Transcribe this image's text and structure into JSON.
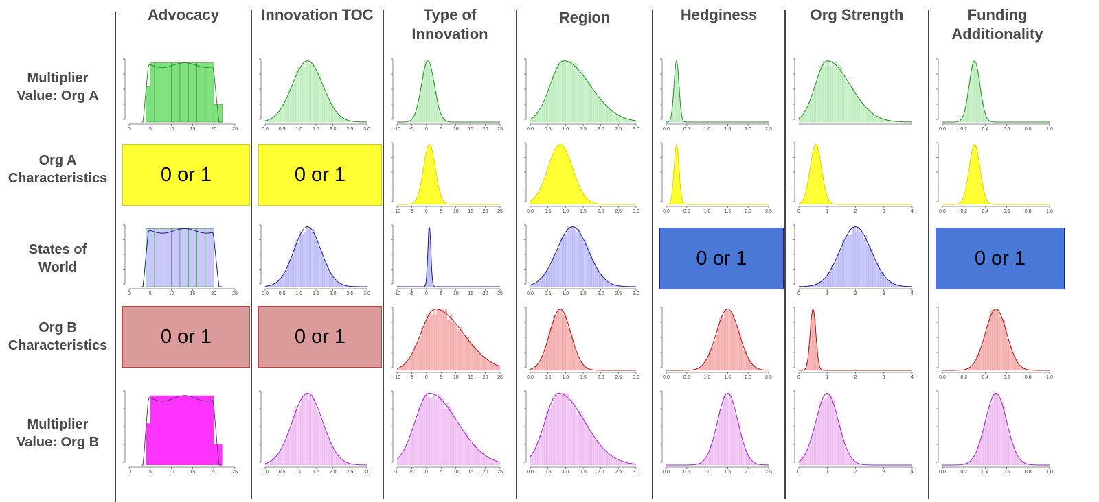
{
  "columns": [
    "Advocacy",
    "Innovation TOC",
    "Type of\nInnovation",
    "Region",
    "Hedginess",
    "Org Strength",
    "Funding\nAdditionality"
  ],
  "rows": [
    "Multiplier\nValue: Org A",
    "Org A\nCharacteristics",
    "States of\nWorld",
    "Org B\nCharacteristics",
    "Multiplier\nValue: Org B"
  ],
  "box_label": "0 or 1",
  "colors": {
    "green": "#33cc33",
    "yellow": "#ffff33",
    "blue": "#0000ee",
    "blue_box": "#4a78d6",
    "red": "#ee2222",
    "pink_box": "#dc9b9b",
    "magenta": "#ff33ff",
    "violet": "#bb33dd"
  },
  "chart_data": [
    {
      "type": "histogram",
      "row": 0,
      "col": 0,
      "color": "green",
      "shape": "uniform-bars",
      "xticks": [
        "0",
        "5",
        "10",
        "15",
        "20",
        "25"
      ],
      "xlim": [
        0,
        25
      ],
      "bars": [
        {
          "x0": 4,
          "x1": 5,
          "h": 0.6
        },
        {
          "x0": 5,
          "x1": 20,
          "h": 1.0
        },
        {
          "x0": 20,
          "x1": 22,
          "h": 0.3
        }
      ]
    },
    {
      "type": "histogram",
      "row": 0,
      "col": 1,
      "color": "green",
      "shape": "normal",
      "mean": 1.25,
      "sd": 0.45,
      "xticks": [
        "0.0",
        "0.5",
        "1.0",
        "1.5",
        "2.0",
        "2.5",
        "3.0"
      ],
      "xlim": [
        0,
        3
      ]
    },
    {
      "type": "histogram",
      "row": 0,
      "col": 2,
      "color": "green",
      "shape": "normal",
      "mean": 0.5,
      "sd": 2.2,
      "xticks": [
        "-10",
        "-5",
        "0",
        "5",
        "10",
        "15",
        "20",
        "25"
      ],
      "xlim": [
        -10,
        25
      ]
    },
    {
      "type": "histogram",
      "row": 0,
      "col": 3,
      "color": "green",
      "shape": "skewed",
      "mean": 0.95,
      "sd": 0.55,
      "xticks": [
        "0.0",
        "0.5",
        "1.0",
        "1.5",
        "2.0",
        "2.5",
        "3.0"
      ],
      "xlim": [
        0,
        3
      ]
    },
    {
      "type": "histogram",
      "row": 0,
      "col": 4,
      "color": "green",
      "shape": "normal",
      "mean": 0.25,
      "sd": 0.06,
      "xticks": [
        "0.0",
        "0.5",
        "1.0",
        "1.5",
        "2.0",
        "2.5"
      ],
      "xlim": [
        0,
        2.5
      ]
    },
    {
      "type": "histogram",
      "row": 0,
      "col": 5,
      "color": "green",
      "shape": "skewed",
      "mean": 1.0,
      "sd": 0.6,
      "xticks": [],
      "xlim": [
        0,
        4
      ]
    },
    {
      "type": "histogram",
      "row": 0,
      "col": 6,
      "color": "green",
      "shape": "normal",
      "mean": 0.3,
      "sd": 0.05,
      "xticks": [
        "0.0",
        "0.2",
        "0.4",
        "0.6",
        "0.8",
        "1.0"
      ],
      "xlim": [
        0,
        1
      ]
    },
    {
      "type": "box",
      "row": 1,
      "col": 0,
      "color": "yellow"
    },
    {
      "type": "box",
      "row": 1,
      "col": 1,
      "color": "yellow"
    },
    {
      "type": "histogram",
      "row": 1,
      "col": 2,
      "color": "yellow",
      "shape": "normal",
      "mean": 1,
      "sd": 2.0,
      "xticks": [
        "-10",
        "-5",
        "0",
        "5",
        "10",
        "15",
        "20",
        "25"
      ],
      "xlim": [
        -10,
        25
      ]
    },
    {
      "type": "histogram",
      "row": 1,
      "col": 3,
      "color": "yellow",
      "shape": "normal",
      "mean": 0.85,
      "sd": 0.35,
      "xticks": [
        "0.0",
        "0.5",
        "1.0",
        "1.5",
        "2.0",
        "2.5",
        "3.0"
      ],
      "xlim": [
        0,
        3
      ]
    },
    {
      "type": "histogram",
      "row": 1,
      "col": 4,
      "color": "yellow",
      "shape": "normal",
      "mean": 0.25,
      "sd": 0.06,
      "xticks": [
        "0.0",
        "0.5",
        "1.0",
        "1.5",
        "2.0",
        "2.5"
      ],
      "xlim": [
        0,
        2.5
      ]
    },
    {
      "type": "histogram",
      "row": 1,
      "col": 5,
      "color": "yellow",
      "shape": "normal",
      "mean": 0.6,
      "sd": 0.2,
      "xticks": [
        "0",
        "1",
        "2",
        "3",
        "4"
      ],
      "xlim": [
        0,
        4
      ]
    },
    {
      "type": "histogram",
      "row": 1,
      "col": 6,
      "color": "yellow",
      "shape": "normal",
      "mean": 0.3,
      "sd": 0.05,
      "xticks": [
        "0.0",
        "0.2",
        "0.4",
        "0.6",
        "0.8",
        "1.0"
      ],
      "xlim": [
        0,
        1
      ]
    },
    {
      "type": "histogram",
      "row": 2,
      "col": 0,
      "color": "blue",
      "shape": "uniform-bars",
      "xticks": [
        "0",
        "5",
        "10",
        "15",
        "20",
        "25"
      ],
      "xlim": [
        0,
        25
      ],
      "bars": [
        {
          "x0": 4,
          "x1": 20,
          "h": 1.0
        }
      ]
    },
    {
      "type": "histogram",
      "row": 2,
      "col": 1,
      "color": "blue",
      "shape": "normal",
      "mean": 1.25,
      "sd": 0.4,
      "xticks": [
        "0.0",
        "0.5",
        "1.0",
        "1.5",
        "2.0",
        "2.5",
        "3.0"
      ],
      "xlim": [
        0,
        3
      ]
    },
    {
      "type": "histogram",
      "row": 2,
      "col": 2,
      "color": "blue",
      "shape": "normal",
      "mean": 1,
      "sd": 0.5,
      "xticks": [
        "-10",
        "-5",
        "0",
        "5",
        "10",
        "15",
        "20",
        "25"
      ],
      "xlim": [
        -10,
        25
      ]
    },
    {
      "type": "histogram",
      "row": 2,
      "col": 3,
      "color": "blue",
      "shape": "normal",
      "mean": 1.2,
      "sd": 0.45,
      "xticks": [
        "0.0",
        "0.5",
        "1.0",
        "1.5",
        "2.0",
        "2.5",
        "3.0"
      ],
      "xlim": [
        0,
        3
      ]
    },
    {
      "type": "box",
      "row": 2,
      "col": 4,
      "color": "blue_box"
    },
    {
      "type": "histogram",
      "row": 2,
      "col": 5,
      "color": "blue",
      "shape": "normal",
      "mean": 2.0,
      "sd": 0.55,
      "xticks": [
        "0",
        "1",
        "2",
        "3",
        "4"
      ],
      "xlim": [
        0,
        4
      ]
    },
    {
      "type": "box",
      "row": 2,
      "col": 6,
      "color": "blue_box"
    },
    {
      "type": "box",
      "row": 3,
      "col": 0,
      "color": "pink_box"
    },
    {
      "type": "box",
      "row": 3,
      "col": 1,
      "color": "pink_box"
    },
    {
      "type": "histogram",
      "row": 3,
      "col": 2,
      "color": "red",
      "shape": "skewed",
      "mean": 3,
      "sd": 7,
      "xticks": [
        "-10",
        "-5",
        "0",
        "5",
        "10",
        "15",
        "20",
        "25"
      ],
      "xlim": [
        -10,
        25
      ]
    },
    {
      "type": "histogram",
      "row": 3,
      "col": 3,
      "color": "red",
      "shape": "normal",
      "mean": 0.85,
      "sd": 0.3,
      "xticks": [
        "0.0",
        "0.5",
        "1.0",
        "1.5",
        "2.0",
        "2.5",
        "3.0"
      ],
      "xlim": [
        0,
        3
      ]
    },
    {
      "type": "histogram",
      "row": 3,
      "col": 4,
      "color": "red",
      "shape": "normal",
      "mean": 1.5,
      "sd": 0.28,
      "xticks": [
        "0.0",
        "0.5",
        "1.0",
        "1.5",
        "2.0",
        "2.5"
      ],
      "xlim": [
        0,
        2.5
      ]
    },
    {
      "type": "histogram",
      "row": 3,
      "col": 5,
      "color": "red",
      "shape": "normal",
      "mean": 0.5,
      "sd": 0.1,
      "xticks": [
        "0",
        "1",
        "2",
        "3",
        "4"
      ],
      "xlim": [
        0,
        4
      ]
    },
    {
      "type": "histogram",
      "row": 3,
      "col": 6,
      "color": "red",
      "shape": "normal",
      "mean": 0.5,
      "sd": 0.1,
      "xticks": [
        "0.0",
        "0.2",
        "0.4",
        "0.6",
        "0.8",
        "1.0"
      ],
      "xlim": [
        0,
        1
      ]
    },
    {
      "type": "histogram",
      "row": 4,
      "col": 0,
      "color": "magenta",
      "shape": "uniform-bars",
      "xticks": [
        "0",
        "5",
        "10",
        "15",
        "20",
        "25"
      ],
      "xlim": [
        0,
        25
      ],
      "bars": [
        {
          "x0": 4,
          "x1": 5,
          "h": 0.6
        },
        {
          "x0": 5,
          "x1": 20,
          "h": 1.0
        },
        {
          "x0": 20,
          "x1": 22,
          "h": 0.3
        }
      ]
    },
    {
      "type": "histogram",
      "row": 4,
      "col": 1,
      "color": "violet",
      "shape": "normal",
      "mean": 1.25,
      "sd": 0.45,
      "xticks": [
        "0.0",
        "0.5",
        "1.0",
        "1.5",
        "2.0",
        "2.5",
        "3.0"
      ],
      "xlim": [
        0,
        3
      ]
    },
    {
      "type": "histogram",
      "row": 4,
      "col": 2,
      "color": "violet",
      "shape": "skewed",
      "mean": 1,
      "sd": 7,
      "xticks": [
        "-10",
        "-5",
        "0",
        "5",
        "10",
        "15",
        "20",
        "25"
      ],
      "xlim": [
        -10,
        25
      ]
    },
    {
      "type": "histogram",
      "row": 4,
      "col": 3,
      "color": "violet",
      "shape": "skewed",
      "mean": 0.8,
      "sd": 0.55,
      "xticks": [
        "0.0",
        "0.5",
        "1.0",
        "1.5",
        "2.0",
        "2.5",
        "3.0"
      ],
      "xlim": [
        0,
        3
      ]
    },
    {
      "type": "histogram",
      "row": 4,
      "col": 4,
      "color": "violet",
      "shape": "normal",
      "mean": 1.5,
      "sd": 0.25,
      "xticks": [
        "0.0",
        "0.5",
        "1.0",
        "1.5",
        "2.0",
        "2.5"
      ],
      "xlim": [
        0,
        2.5
      ]
    },
    {
      "type": "histogram",
      "row": 4,
      "col": 5,
      "color": "violet",
      "shape": "normal",
      "mean": 1.0,
      "sd": 0.4,
      "xticks": [
        "0",
        "1",
        "2",
        "3",
        "4"
      ],
      "xlim": [
        0,
        4
      ]
    },
    {
      "type": "histogram",
      "row": 4,
      "col": 6,
      "color": "violet",
      "shape": "normal",
      "mean": 0.5,
      "sd": 0.1,
      "xticks": [
        "0.0",
        "0.2",
        "0.4",
        "0.6",
        "0.8",
        "1.0"
      ],
      "xlim": [
        0,
        1
      ]
    }
  ]
}
